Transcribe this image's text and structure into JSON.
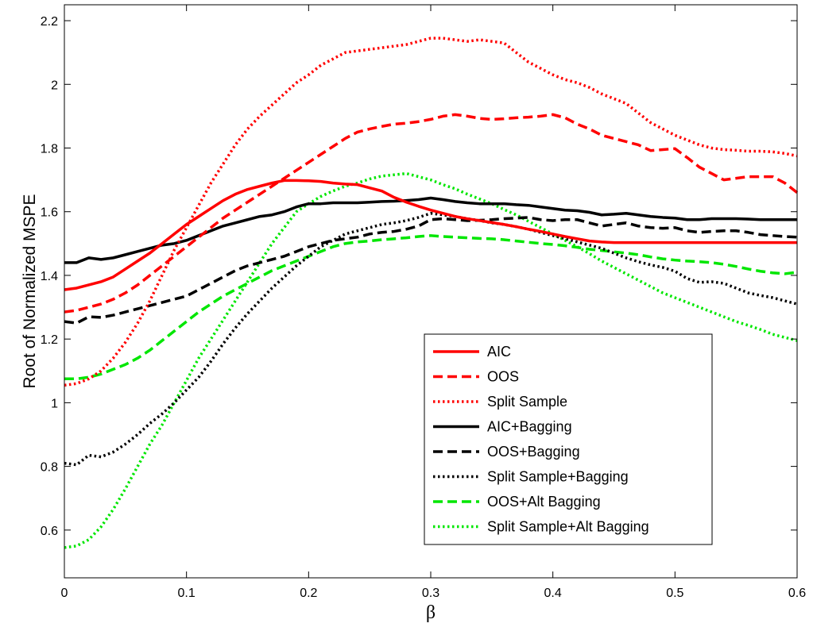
{
  "chart_data": {
    "type": "line",
    "title": "",
    "xlabel": "β",
    "ylabel": "Root of Normalized MSPE",
    "xlim": [
      0,
      0.6
    ],
    "ylim": [
      0.45,
      2.25
    ],
    "xticks": [
      0,
      0.1,
      0.2,
      0.3,
      0.4,
      0.5,
      0.6
    ],
    "xtick_labels": [
      "0",
      "0.1",
      "0.2",
      "0.3",
      "0.4",
      "0.5",
      "0.6"
    ],
    "yticks": [
      0.6,
      0.8,
      1,
      1.2,
      1.4,
      1.6,
      1.8,
      2,
      2.2
    ],
    "ytick_labels": [
      "0.6",
      "0.8",
      "1",
      "1.2",
      "1.4",
      "1.6",
      "1.8",
      "2",
      "2.2"
    ],
    "grid": false,
    "legend_position": "bottom-right",
    "x": [
      0,
      0.01,
      0.02,
      0.03,
      0.04,
      0.05,
      0.06,
      0.07,
      0.08,
      0.09,
      0.1,
      0.11,
      0.12,
      0.13,
      0.14,
      0.15,
      0.16,
      0.17,
      0.18,
      0.19,
      0.2,
      0.21,
      0.22,
      0.23,
      0.24,
      0.25,
      0.26,
      0.27,
      0.28,
      0.29,
      0.3,
      0.31,
      0.32,
      0.33,
      0.34,
      0.35,
      0.36,
      0.37,
      0.38,
      0.39,
      0.4,
      0.41,
      0.42,
      0.43,
      0.44,
      0.45,
      0.46,
      0.47,
      0.48,
      0.49,
      0.5,
      0.51,
      0.52,
      0.53,
      0.54,
      0.55,
      0.56,
      0.57,
      0.58,
      0.59,
      0.6
    ],
    "series": [
      {
        "name": "AIC",
        "color": "#ff0000",
        "dash": "solid",
        "values": [
          1.355,
          1.36,
          1.37,
          1.38,
          1.395,
          1.42,
          1.445,
          1.47,
          1.5,
          1.53,
          1.56,
          1.585,
          1.61,
          1.635,
          1.655,
          1.67,
          1.68,
          1.69,
          1.698,
          1.698,
          1.697,
          1.695,
          1.69,
          1.687,
          1.685,
          1.675,
          1.665,
          1.645,
          1.63,
          1.617,
          1.605,
          1.595,
          1.585,
          1.578,
          1.572,
          1.566,
          1.56,
          1.553,
          1.545,
          1.538,
          1.53,
          1.522,
          1.515,
          1.508,
          1.505,
          1.503,
          1.503,
          1.503,
          1.503,
          1.503,
          1.503,
          1.503,
          1.503,
          1.503,
          1.503,
          1.503,
          1.503,
          1.503,
          1.503,
          1.503,
          1.503
        ]
      },
      {
        "name": "OOS",
        "color": "#ff0000",
        "dash": "dashed",
        "values": [
          1.285,
          1.29,
          1.3,
          1.31,
          1.325,
          1.345,
          1.37,
          1.4,
          1.43,
          1.46,
          1.49,
          1.52,
          1.55,
          1.58,
          1.605,
          1.63,
          1.655,
          1.68,
          1.705,
          1.73,
          1.755,
          1.78,
          1.805,
          1.83,
          1.85,
          1.86,
          1.868,
          1.875,
          1.878,
          1.883,
          1.89,
          1.9,
          1.905,
          1.9,
          1.893,
          1.89,
          1.892,
          1.895,
          1.897,
          1.9,
          1.905,
          1.895,
          1.875,
          1.86,
          1.84,
          1.83,
          1.82,
          1.81,
          1.792,
          1.795,
          1.798,
          1.77,
          1.74,
          1.72,
          1.7,
          1.705,
          1.71,
          1.71,
          1.71,
          1.69,
          1.66
        ]
      },
      {
        "name": "Split Sample",
        "color": "#ff0000",
        "dash": "dotted",
        "values": [
          1.055,
          1.06,
          1.075,
          1.1,
          1.14,
          1.19,
          1.25,
          1.32,
          1.4,
          1.48,
          1.55,
          1.62,
          1.69,
          1.75,
          1.81,
          1.86,
          1.9,
          1.935,
          1.97,
          2.005,
          2.03,
          2.06,
          2.08,
          2.1,
          2.105,
          2.11,
          2.115,
          2.12,
          2.125,
          2.135,
          2.145,
          2.145,
          2.14,
          2.135,
          2.14,
          2.135,
          2.13,
          2.1,
          2.07,
          2.05,
          2.03,
          2.015,
          2.005,
          1.99,
          1.97,
          1.955,
          1.94,
          1.91,
          1.88,
          1.86,
          1.84,
          1.825,
          1.81,
          1.8,
          1.795,
          1.793,
          1.79,
          1.79,
          1.788,
          1.783,
          1.775
        ]
      },
      {
        "name": "AIC+Bagging",
        "color": "#000000",
        "dash": "solid",
        "values": [
          1.44,
          1.44,
          1.455,
          1.45,
          1.455,
          1.465,
          1.475,
          1.485,
          1.495,
          1.5,
          1.51,
          1.525,
          1.54,
          1.555,
          1.565,
          1.575,
          1.585,
          1.59,
          1.6,
          1.615,
          1.625,
          1.625,
          1.628,
          1.628,
          1.628,
          1.63,
          1.632,
          1.633,
          1.635,
          1.638,
          1.643,
          1.638,
          1.632,
          1.628,
          1.625,
          1.625,
          1.625,
          1.622,
          1.62,
          1.615,
          1.61,
          1.605,
          1.603,
          1.598,
          1.59,
          1.592,
          1.595,
          1.59,
          1.585,
          1.582,
          1.58,
          1.575,
          1.575,
          1.578,
          1.578,
          1.578,
          1.577,
          1.575,
          1.575,
          1.575,
          1.575
        ]
      },
      {
        "name": "OOS+Bagging",
        "color": "#000000",
        "dash": "dashed",
        "values": [
          1.255,
          1.25,
          1.27,
          1.268,
          1.275,
          1.285,
          1.295,
          1.305,
          1.315,
          1.325,
          1.335,
          1.355,
          1.375,
          1.395,
          1.415,
          1.43,
          1.44,
          1.45,
          1.46,
          1.475,
          1.49,
          1.5,
          1.51,
          1.515,
          1.52,
          1.53,
          1.535,
          1.538,
          1.545,
          1.555,
          1.575,
          1.578,
          1.575,
          1.572,
          1.573,
          1.575,
          1.578,
          1.58,
          1.582,
          1.575,
          1.572,
          1.575,
          1.575,
          1.565,
          1.555,
          1.56,
          1.565,
          1.555,
          1.55,
          1.548,
          1.55,
          1.54,
          1.535,
          1.538,
          1.54,
          1.54,
          1.535,
          1.528,
          1.525,
          1.522,
          1.52
        ]
      },
      {
        "name": "Split Sample+Bagging",
        "color": "#000000",
        "dash": "dotted",
        "values": [
          0.81,
          0.805,
          0.835,
          0.83,
          0.845,
          0.87,
          0.9,
          0.935,
          0.965,
          1.0,
          1.04,
          1.08,
          1.13,
          1.185,
          1.235,
          1.28,
          1.32,
          1.36,
          1.395,
          1.43,
          1.46,
          1.49,
          1.51,
          1.53,
          1.54,
          1.55,
          1.56,
          1.565,
          1.572,
          1.582,
          1.595,
          1.59,
          1.585,
          1.578,
          1.572,
          1.565,
          1.56,
          1.553,
          1.545,
          1.535,
          1.525,
          1.515,
          1.505,
          1.495,
          1.485,
          1.47,
          1.455,
          1.443,
          1.433,
          1.425,
          1.413,
          1.39,
          1.378,
          1.38,
          1.375,
          1.36,
          1.345,
          1.337,
          1.33,
          1.32,
          1.31
        ]
      },
      {
        "name": "OOS+Alt Bagging",
        "color": "#00e600",
        "dash": "dashed",
        "values": [
          1.075,
          1.075,
          1.08,
          1.09,
          1.105,
          1.12,
          1.14,
          1.165,
          1.195,
          1.225,
          1.255,
          1.285,
          1.31,
          1.335,
          1.355,
          1.375,
          1.395,
          1.415,
          1.43,
          1.445,
          1.46,
          1.475,
          1.49,
          1.5,
          1.505,
          1.508,
          1.512,
          1.515,
          1.518,
          1.522,
          1.525,
          1.522,
          1.52,
          1.518,
          1.516,
          1.515,
          1.512,
          1.508,
          1.504,
          1.5,
          1.497,
          1.493,
          1.488,
          1.482,
          1.478,
          1.474,
          1.47,
          1.465,
          1.458,
          1.452,
          1.448,
          1.445,
          1.443,
          1.44,
          1.435,
          1.428,
          1.42,
          1.413,
          1.408,
          1.405,
          1.41
        ]
      },
      {
        "name": "Split Sample+Alt Bagging",
        "color": "#00e600",
        "dash": "dotted",
        "values": [
          0.545,
          0.55,
          0.57,
          0.61,
          0.665,
          0.73,
          0.8,
          0.87,
          0.93,
          1.0,
          1.07,
          1.14,
          1.2,
          1.26,
          1.32,
          1.38,
          1.44,
          1.5,
          1.55,
          1.6,
          1.625,
          1.648,
          1.665,
          1.68,
          1.69,
          1.703,
          1.712,
          1.716,
          1.72,
          1.71,
          1.7,
          1.685,
          1.672,
          1.655,
          1.64,
          1.625,
          1.607,
          1.59,
          1.57,
          1.55,
          1.53,
          1.51,
          1.49,
          1.468,
          1.445,
          1.425,
          1.405,
          1.385,
          1.365,
          1.345,
          1.33,
          1.315,
          1.3,
          1.285,
          1.27,
          1.255,
          1.243,
          1.23,
          1.215,
          1.205,
          1.195
        ]
      }
    ]
  }
}
